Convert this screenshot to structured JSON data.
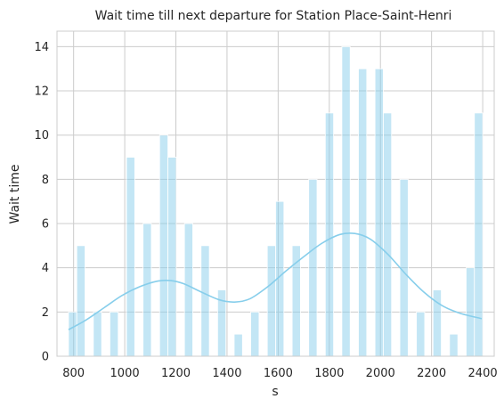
{
  "chart_data": {
    "type": "bar",
    "title": "Wait time till next departure for Station Place-Saint-Henri",
    "xlabel": "s",
    "ylabel": "Wait time",
    "xlim": [
      735,
      2445
    ],
    "ylim": [
      0,
      14.7
    ],
    "xticks": [
      800,
      1000,
      1200,
      1400,
      1600,
      1800,
      2000,
      2200,
      2400
    ],
    "yticks": [
      0,
      2,
      4,
      6,
      8,
      10,
      12,
      14
    ],
    "grid": true,
    "bin_edges_start": 780,
    "bin_width": 32.4,
    "bins": [
      {
        "x": 780,
        "count": 2
      },
      {
        "x": 812.4,
        "count": 5
      },
      {
        "x": 877.2,
        "count": 2
      },
      {
        "x": 942,
        "count": 2
      },
      {
        "x": 1006.8,
        "count": 9
      },
      {
        "x": 1071.6,
        "count": 6
      },
      {
        "x": 1136.4,
        "count": 10
      },
      {
        "x": 1168.8,
        "count": 9
      },
      {
        "x": 1233.6,
        "count": 6
      },
      {
        "x": 1298.4,
        "count": 5
      },
      {
        "x": 1363.2,
        "count": 3
      },
      {
        "x": 1428,
        "count": 1
      },
      {
        "x": 1492.8,
        "count": 2
      },
      {
        "x": 1557.6,
        "count": 5
      },
      {
        "x": 1590,
        "count": 7
      },
      {
        "x": 1654.8,
        "count": 5
      },
      {
        "x": 1719.6,
        "count": 8
      },
      {
        "x": 1784.4,
        "count": 11
      },
      {
        "x": 1849.2,
        "count": 14
      },
      {
        "x": 1914,
        "count": 13
      },
      {
        "x": 1978.8,
        "count": 13
      },
      {
        "x": 2011.2,
        "count": 11
      },
      {
        "x": 2076,
        "count": 8
      },
      {
        "x": 2140.8,
        "count": 2
      },
      {
        "x": 2205.6,
        "count": 3
      },
      {
        "x": 2270.4,
        "count": 1
      },
      {
        "x": 2335.2,
        "count": 4
      },
      {
        "x": 2367.6,
        "count": 11
      }
    ],
    "kde": {
      "x": [
        780,
        850,
        920,
        990,
        1060,
        1130,
        1180,
        1230,
        1300,
        1370,
        1430,
        1490,
        1560,
        1630,
        1700,
        1770,
        1840,
        1900,
        1960,
        2030,
        2100,
        2170,
        2240,
        2310,
        2396
      ],
      "y": [
        1.2,
        1.65,
        2.2,
        2.75,
        3.15,
        3.4,
        3.42,
        3.28,
        2.9,
        2.55,
        2.45,
        2.6,
        3.15,
        3.85,
        4.5,
        5.1,
        5.5,
        5.55,
        5.3,
        4.6,
        3.7,
        2.9,
        2.3,
        1.95,
        1.7
      ]
    },
    "colors": {
      "bars": "#87ceeb",
      "kde": "#87ceeb",
      "grid": "#cccccc"
    }
  }
}
